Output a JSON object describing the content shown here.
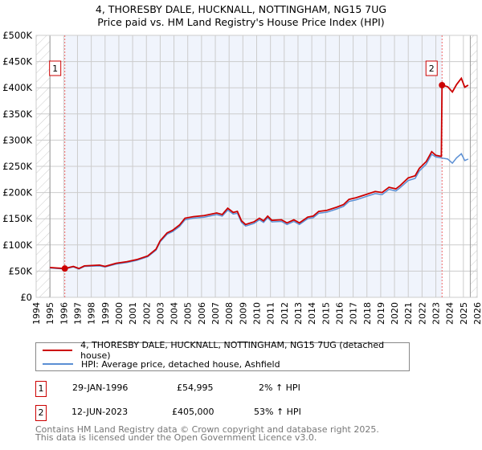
{
  "title": "4, THORESBY DALE, HUCKNALL, NOTTINGHAM, NG15 7UG",
  "subtitle": "Price paid vs. HM Land Registry's House Price Index (HPI)",
  "legend": [
    {
      "label": "4, THORESBY DALE, HUCKNALL, NOTTINGHAM, NG15 7UG (detached house)",
      "color": "#cc0000"
    },
    {
      "label": "HPI: Average price, detached house, Ashfield",
      "color": "#5b8fd4"
    }
  ],
  "transactions": [
    {
      "num": "1",
      "date": "29-JAN-1996",
      "price": "£54,995",
      "hpi": "2% ↑ HPI"
    },
    {
      "num": "2",
      "date": "12-JUN-2023",
      "price": "£405,000",
      "hpi": "53% ↑ HPI"
    }
  ],
  "footer": [
    "Contains HM Land Registry data © Crown copyright and database right 2025.",
    "This data is licensed under the Open Government Licence v3.0."
  ],
  "chart_data": {
    "type": "line",
    "title": "4, THORESBY DALE, HUCKNALL, NOTTINGHAM, NG15 7UG",
    "subtitle": "Price paid vs. HM Land Registry's House Price Index (HPI)",
    "xlim": [
      1994,
      2026
    ],
    "ylim": [
      0,
      500000
    ],
    "x_ticks": [
      1994,
      1995,
      1996,
      1997,
      1998,
      1999,
      2000,
      2001,
      2002,
      2003,
      2004,
      2005,
      2006,
      2007,
      2008,
      2009,
      2010,
      2011,
      2012,
      2013,
      2014,
      2015,
      2016,
      2017,
      2018,
      2019,
      2020,
      2021,
      2022,
      2023,
      2024,
      2025,
      2026
    ],
    "y_ticks": [
      0,
      50000,
      100000,
      150000,
      200000,
      250000,
      300000,
      350000,
      400000,
      450000,
      500000
    ],
    "y_tick_labels": [
      "£0",
      "£50K",
      "£100K",
      "£150K",
      "£200K",
      "£250K",
      "£300K",
      "£350K",
      "£400K",
      "£450K",
      "£500K"
    ],
    "data_range": [
      1995,
      2025.5
    ],
    "sales": [
      {
        "label": "1",
        "x": 1996.08,
        "y": 54995
      },
      {
        "label": "2",
        "x": 2023.45,
        "y": 405000
      }
    ],
    "series": [
      {
        "name": "4, THORESBY DALE, HUCKNALL, NOTTINGHAM, NG15 7UG (detached house)",
        "color": "#cc0000",
        "x": [
          1995.0,
          1995.5,
          1996.08,
          1996.7,
          1997.1,
          1997.5,
          1998.6,
          1999.0,
          1999.8,
          2000.6,
          2001.3,
          2002.1,
          2002.7,
          2003.0,
          2003.5,
          2003.9,
          2004.4,
          2004.8,
          2005.4,
          2006.2,
          2007.1,
          2007.5,
          2007.9,
          2008.3,
          2008.6,
          2008.9,
          2009.2,
          2009.8,
          2010.2,
          2010.5,
          2010.8,
          2011.1,
          2011.8,
          2012.2,
          2012.7,
          2013.1,
          2013.7,
          2014.1,
          2014.5,
          2015.1,
          2015.8,
          2016.3,
          2016.7,
          2017.2,
          2017.9,
          2018.6,
          2019.1,
          2019.6,
          2020.1,
          2020.4,
          2021.0,
          2021.5,
          2021.8,
          2022.3,
          2022.7,
          2023.0,
          2023.4,
          2023.45,
          2023.86,
          2024.2,
          2024.5,
          2024.85,
          2025.1,
          2025.35
        ],
        "y": [
          57000,
          56000,
          54995,
          59000,
          55000,
          60000,
          61500,
          59000,
          65000,
          68000,
          72000,
          79000,
          92000,
          108000,
          123000,
          128000,
          138000,
          151000,
          154000,
          156000,
          161000,
          158000,
          170000,
          162000,
          164000,
          146000,
          139000,
          144000,
          151000,
          146000,
          155000,
          147000,
          148000,
          142000,
          148000,
          142000,
          153000,
          155000,
          164000,
          166000,
          172000,
          177000,
          187000,
          190000,
          196000,
          202000,
          200000,
          210000,
          207000,
          213000,
          228000,
          232000,
          246000,
          259000,
          278000,
          271000,
          269000,
          405000,
          402000,
          392000,
          406000,
          418000,
          401000,
          405000
        ]
      },
      {
        "name": "HPI: Average price, detached house, Ashfield",
        "color": "#5b8fd4",
        "x": [
          1995.0,
          1995.5,
          1996.08,
          1996.7,
          1997.1,
          1997.5,
          1998.6,
          1999.0,
          1999.8,
          2000.6,
          2001.3,
          2002.1,
          2002.7,
          2003.0,
          2003.5,
          2003.9,
          2004.4,
          2004.8,
          2005.4,
          2006.2,
          2007.1,
          2007.5,
          2007.9,
          2008.3,
          2008.6,
          2008.9,
          2009.2,
          2009.8,
          2010.2,
          2010.5,
          2010.8,
          2011.1,
          2011.8,
          2012.2,
          2012.7,
          2013.1,
          2013.7,
          2014.1,
          2014.5,
          2015.1,
          2015.8,
          2016.3,
          2016.7,
          2017.2,
          2017.9,
          2018.6,
          2019.1,
          2019.6,
          2020.1,
          2020.4,
          2021.0,
          2021.5,
          2021.8,
          2022.3,
          2022.7,
          2023.0,
          2023.4,
          2023.86,
          2024.2,
          2024.5,
          2024.85,
          2025.1,
          2025.35
        ],
        "y": [
          56000,
          55000,
          54000,
          58000,
          54000,
          59000,
          60000,
          58000,
          63500,
          66500,
          70500,
          77500,
          90000,
          106000,
          120500,
          125500,
          135000,
          148000,
          151000,
          153000,
          158000,
          155000,
          166500,
          159000,
          160500,
          143000,
          136000,
          141000,
          148000,
          143000,
          152000,
          144000,
          145000,
          139000,
          145000,
          139000,
          150000,
          152000,
          160500,
          162500,
          168500,
          173500,
          183000,
          186000,
          192000,
          198000,
          196000,
          206000,
          203000,
          209000,
          223000,
          227000,
          241000,
          254000,
          273000,
          268000,
          266000,
          264000,
          256000,
          266000,
          274000,
          261000,
          264000
        ]
      }
    ]
  }
}
